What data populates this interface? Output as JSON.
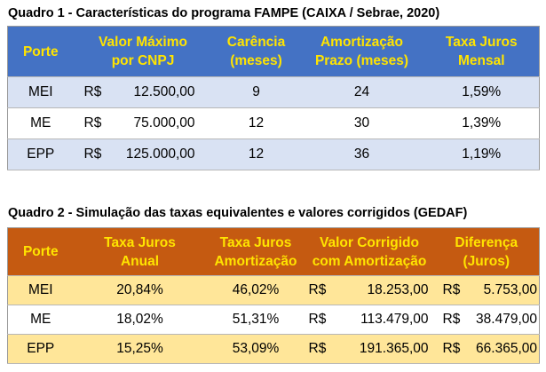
{
  "table1": {
    "title": "Quadro 1 - Características do programa FAMPE (CAIXA / Sebrae, 2020)",
    "headers": [
      [
        "Porte"
      ],
      [
        "Valor Máximo",
        "por CNPJ"
      ],
      [
        "Carência",
        "(meses)"
      ],
      [
        "Amortização",
        "Prazo (meses)"
      ],
      [
        "Taxa Juros",
        "Mensal"
      ]
    ],
    "rows": [
      {
        "porte": "MEI",
        "currency": "R$",
        "valor": "12.500,00",
        "carencia": "9",
        "prazo": "24",
        "taxa": "1,59%"
      },
      {
        "porte": "ME",
        "currency": "R$",
        "valor": "75.000,00",
        "carencia": "12",
        "prazo": "30",
        "taxa": "1,39%"
      },
      {
        "porte": "EPP",
        "currency": "R$",
        "valor": "125.000,00",
        "carencia": "12",
        "prazo": "36",
        "taxa": "1,19%"
      }
    ],
    "colors": {
      "header_bg": "#4472c4",
      "header_text": "#ffe400",
      "band": "#d9e2f3"
    }
  },
  "table2": {
    "title": "Quadro 2 - Simulação das taxas equivalentes e valores corrigidos (GEDAF)",
    "headers": [
      [
        "Porte"
      ],
      [
        "Taxa Juros",
        "Anual"
      ],
      [
        "Taxa Juros",
        "Amortização"
      ],
      [
        "Valor Corrigido",
        "com Amortização"
      ],
      [
        "Diferença",
        "(Juros)"
      ]
    ],
    "rows": [
      {
        "porte": "MEI",
        "anual": "20,84%",
        "amortizacao": "46,02%",
        "currency": "R$",
        "corrigido": "18.253,00",
        "dif_currency": "R$",
        "diferenca": "5.753,00"
      },
      {
        "porte": "ME",
        "anual": "18,02%",
        "amortizacao": "51,31%",
        "currency": "R$",
        "corrigido": "113.479,00",
        "dif_currency": "R$",
        "diferenca": "38.479,00"
      },
      {
        "porte": "EPP",
        "anual": "15,25%",
        "amortizacao": "53,09%",
        "currency": "R$",
        "corrigido": "191.365,00",
        "dif_currency": "R$",
        "diferenca": "66.365,00"
      }
    ],
    "colors": {
      "header_bg": "#c55a11",
      "header_text": "#ffe400",
      "band": "#ffe699"
    }
  }
}
